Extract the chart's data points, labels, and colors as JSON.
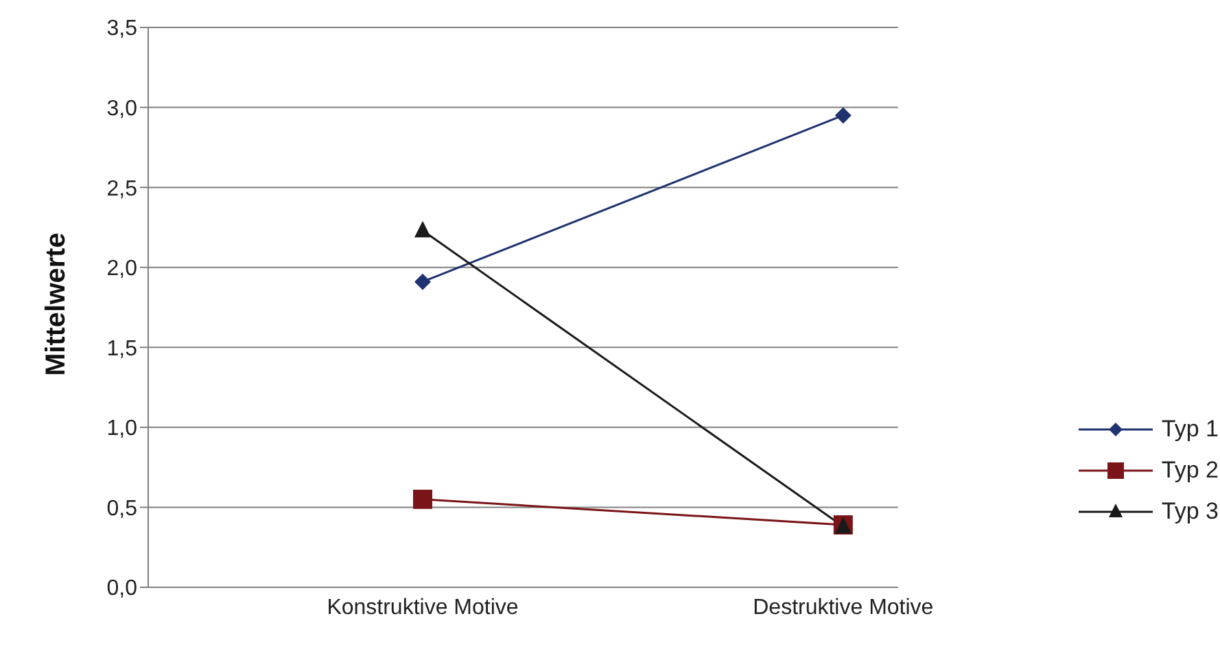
{
  "chart_data": {
    "type": "line",
    "ylabel": "Mittelwerte",
    "categories": [
      "Konstruktive Motive",
      "Destruktive Motive"
    ],
    "series": [
      {
        "name": "Typ 1",
        "color": "#1f3370",
        "marker": "diamond",
        "values": [
          1.91,
          2.95
        ]
      },
      {
        "name": "Typ 2",
        "color": "#7a1418",
        "marker": "square",
        "values": [
          0.55,
          0.39
        ]
      },
      {
        "name": "Typ 3",
        "color": "#1a1a1a",
        "marker": "triangle",
        "values": [
          2.23,
          0.38
        ]
      }
    ],
    "ylim": [
      0,
      3.5
    ],
    "yticks": [
      {
        "value": 0,
        "label": "0,0"
      },
      {
        "value": 0.5,
        "label": "0,5"
      },
      {
        "value": 1,
        "label": "1,0"
      },
      {
        "value": 1.5,
        "label": "1,5"
      },
      {
        "value": 2,
        "label": "2,0"
      },
      {
        "value": 2.5,
        "label": "2,5"
      },
      {
        "value": 3,
        "label": "3,0"
      },
      {
        "value": 3.5,
        "label": "3,5"
      }
    ],
    "grid": "y",
    "legend": "right",
    "line_style": "solid"
  }
}
